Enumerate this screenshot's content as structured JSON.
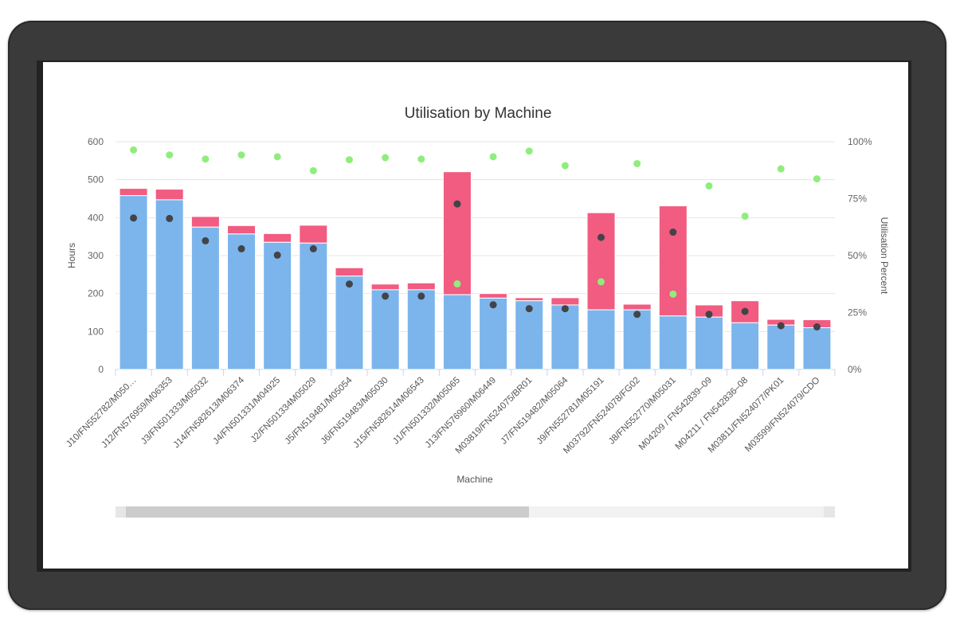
{
  "chart_data": {
    "type": "bar",
    "title": "Utilisation by Machine",
    "xlabel": "Machine",
    "ylabel": "Hours",
    "y2label": "Utilisation Percent",
    "ylim": [
      0,
      600
    ],
    "y2lim": [
      0,
      100
    ],
    "yticks": [
      "0",
      "100",
      "200",
      "300",
      "400",
      "500",
      "600"
    ],
    "y2ticks": [
      "0%",
      "25%",
      "50%",
      "75%",
      "100%"
    ],
    "grid": true,
    "stacked": true,
    "colors": {
      "blue": "#7cb5ec",
      "pink": "#f15c80",
      "dark_dot": "#434348",
      "green_dot": "#90ed7d"
    },
    "categories": [
      "J10/FN552782/M050…",
      "J12/FN576959/M06353",
      "J3/FN501333/M05032",
      "J14/FN582613/M06374",
      "J4/FN501331/M04925",
      "J2/FN501334M05029",
      "J5/FN519481/M05054",
      "J6/FN519483/M05030",
      "J15/FN582614/M06543",
      "J1/FN501332/M05065",
      "J13/FN576960/M06449",
      "M03819/FN524075/BR01",
      "J7/FN519482/M05064",
      "J9/FN552781/M05191",
      "M03792/FN524078/FG02",
      "J8/FN552770/M05031",
      "M04209 / FN542839–09",
      "M04211 / FN542836–08",
      "M03811/FN524077/PK01",
      "M03599/FN524079/CDO"
    ],
    "bar_series": [
      {
        "values": [
          458,
          447,
          375,
          357,
          335,
          333,
          246,
          210,
          210,
          197,
          188,
          181,
          170,
          157,
          157,
          141,
          138,
          123,
          117,
          110
        ]
      },
      {
        "values": [
          19,
          28,
          28,
          22,
          23,
          47,
          22,
          15,
          18,
          324,
          12,
          8,
          19,
          256,
          15,
          290,
          32,
          58,
          15,
          21
        ]
      }
    ],
    "dot_series": [
      {
        "axis": "right",
        "values": [
          66.5,
          66.3,
          56.5,
          53,
          50.2,
          53,
          37.5,
          32.2,
          32.2,
          72.7,
          28.4,
          26.7,
          26.7,
          58,
          24.2,
          60.3,
          24.2,
          25.5,
          19.2,
          18.7
        ]
      },
      {
        "axis": "right",
        "values": [
          96.4,
          94.2,
          92.4,
          94.2,
          93.4,
          87.3,
          92.1,
          93,
          92.4,
          37.6,
          93.4,
          95.9,
          89.5,
          38.5,
          90.4,
          33.1,
          80.6,
          67.3,
          88.1,
          83.7
        ]
      }
    ]
  }
}
